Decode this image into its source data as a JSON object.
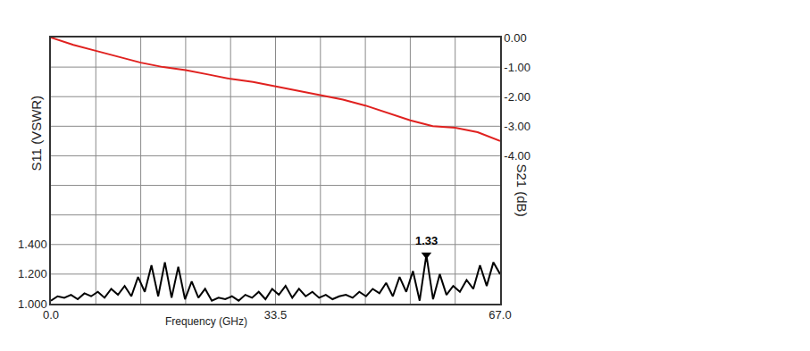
{
  "chart_data": {
    "type": "line",
    "xlabel": "Frequency (GHz)",
    "ylabel": "S11 (VSWR)",
    "y2label": "S21 (dB)",
    "xlim": [
      0,
      67
    ],
    "xticks": [
      {
        "value": 0,
        "label": "0.0"
      },
      33.5,
      {
        "value": 67,
        "label": "67.0"
      }
    ],
    "ylim": [
      1.0,
      2.8
    ],
    "yticks": [
      {
        "value": 1.0,
        "label": "1.000"
      },
      {
        "value": 1.2,
        "label": "1.200"
      },
      {
        "value": 1.4,
        "label": "1.400"
      }
    ],
    "y2lim": [
      -9,
      0
    ],
    "y2ticks": [
      {
        "value": 0,
        "label": "0.00"
      },
      {
        "value": -1,
        "label": "-1.00"
      },
      {
        "value": -2,
        "label": "-2.00"
      },
      {
        "value": -3,
        "label": "-3.00"
      },
      {
        "value": -4,
        "label": "-4.00"
      }
    ],
    "grid": true,
    "series": [
      {
        "name": "S21 (dB)",
        "color": "#e0211f",
        "axis": "y2",
        "x": [
          0,
          3.35,
          6.7,
          10.05,
          13.4,
          16.75,
          20.1,
          23.45,
          26.8,
          30.15,
          33.5,
          36.85,
          40.2,
          43.55,
          46.9,
          50.25,
          53.6,
          56.95,
          60.3,
          63.65,
          67
        ],
        "values": [
          0,
          -0.25,
          -0.45,
          -0.65,
          -0.85,
          -1.0,
          -1.1,
          -1.25,
          -1.4,
          -1.5,
          -1.65,
          -1.8,
          -1.95,
          -2.1,
          -2.3,
          -2.55,
          -2.8,
          -3.0,
          -3.05,
          -3.2,
          -3.5
        ]
      },
      {
        "name": "S11 (VSWR)",
        "color": "#000000",
        "x": [
          0,
          1,
          2,
          3,
          4,
          5,
          6,
          7,
          8,
          9,
          10,
          11,
          12,
          13,
          14,
          15,
          16,
          17,
          18,
          19,
          20,
          21,
          22,
          23,
          24,
          25,
          26,
          27,
          28,
          29,
          30,
          31,
          32,
          33,
          34,
          35,
          36,
          37,
          38,
          39,
          40,
          41,
          42,
          43,
          44,
          45,
          46,
          47,
          48,
          49,
          50,
          51,
          52,
          53,
          54,
          55,
          56,
          57,
          58,
          59,
          60,
          61,
          62,
          63,
          64,
          65,
          66,
          67
        ],
        "values": [
          1.02,
          1.05,
          1.04,
          1.06,
          1.03,
          1.07,
          1.05,
          1.08,
          1.04,
          1.1,
          1.06,
          1.12,
          1.05,
          1.18,
          1.08,
          1.26,
          1.05,
          1.28,
          1.04,
          1.25,
          1.03,
          1.15,
          1.04,
          1.1,
          1.02,
          1.04,
          1.03,
          1.05,
          1.02,
          1.06,
          1.04,
          1.08,
          1.03,
          1.1,
          1.06,
          1.12,
          1.04,
          1.1,
          1.05,
          1.08,
          1.04,
          1.06,
          1.03,
          1.05,
          1.06,
          1.04,
          1.08,
          1.05,
          1.1,
          1.07,
          1.14,
          1.05,
          1.18,
          1.08,
          1.22,
          1.02,
          1.33,
          1.03,
          1.2,
          1.06,
          1.12,
          1.08,
          1.16,
          1.1,
          1.26,
          1.12,
          1.28,
          1.2
        ]
      }
    ],
    "annotations": [
      {
        "x": 56,
        "y": 1.33,
        "text": "1.33"
      }
    ]
  }
}
